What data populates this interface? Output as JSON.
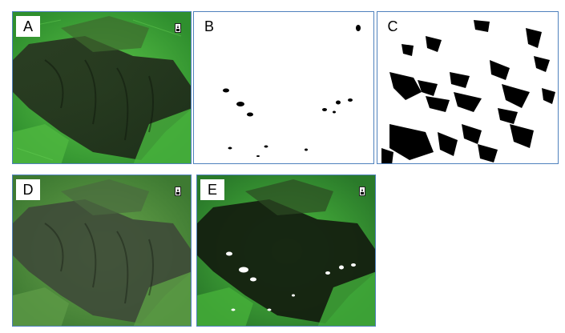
{
  "panels": [
    {
      "label": "A",
      "content": "satellite-image"
    },
    {
      "label": "B",
      "content": "binary-mask-sparse"
    },
    {
      "label": "C",
      "content": "binary-mask-dense"
    },
    {
      "label": "D",
      "content": "satellite-image-enhanced"
    },
    {
      "label": "E",
      "content": "satellite-image-with-white-patches"
    }
  ],
  "icons": {
    "north_arrow": "north-arrow-icon"
  },
  "colors": {
    "border": "#4f81bd",
    "vegetation_bright": "#3ea83a",
    "vegetation_dark": "#1f2e1a",
    "mask_black": "#000000",
    "mask_white": "#ffffff"
  }
}
